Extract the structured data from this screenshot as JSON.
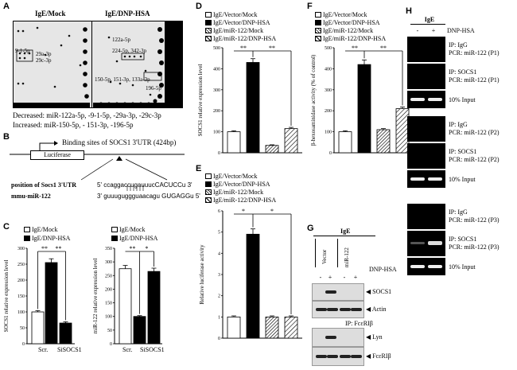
{
  "panels": {
    "A": "A",
    "B": "B",
    "C": "C",
    "D": "D",
    "E": "E",
    "F": "F",
    "G": "G",
    "H": "H"
  },
  "panelA": {
    "header_mock": "IgE/Mock",
    "header_dnp": "IgE/DNP-HSA",
    "spots_left": [
      "9-1-5p",
      "29a-3p",
      "29c-3p"
    ],
    "spots_right": [
      "122a-5p",
      "224-5p, 342-3p",
      "150-5p, 151-3p, 133a-3p",
      "196-5p"
    ],
    "decreased_label": "Decreased:",
    "decreased_text": "miR-122a-5p, -9-1-5p, -29a-3p, -29c-3p",
    "increased_label": "Increased:",
    "increased_text": "miR-150-5p, - 151-3p, -196-5p"
  },
  "panelB": {
    "binding_label": "Binding sites of SOCS1 3'UTR (424bp)",
    "luciferase": "Luciferase",
    "position_label": "position of Socs1 3'UTR",
    "position_seq": "5'  ccaggaccugauuucCACUCCu 3'",
    "mir_label": "mmu-miR-122",
    "mir_seq": "3'  guuuguggguaacagu GUGAGGu  5'"
  },
  "legend": {
    "mock": "IgE/Mock",
    "dnp": "IgE/DNP-HSA",
    "vec_mock": "IgE/Vector/Mock",
    "vec_dnp": "IgE/Vector/DNP-HSA",
    "mir_mock": "IgE/miR-122/Mock",
    "mir_dnp": "IgE/miR-122/DNP-HSA"
  },
  "sig": {
    "double": "**",
    "single": "*"
  },
  "chart_data": [
    {
      "id": "C-left",
      "type": "bar",
      "title": "",
      "xlabel": "",
      "ylabel": "SOCS1 relative expression level",
      "categories": [
        "Scr.",
        "SiSOCS1"
      ],
      "series": [
        {
          "name": "IgE/Mock",
          "values": [
            100,
            null
          ]
        },
        {
          "name": "IgE/DNP-HSA",
          "values": [
            255,
            65
          ]
        }
      ],
      "bars": [
        100,
        255,
        65
      ],
      "fills": [
        "white",
        "black",
        "black"
      ],
      "ylim": [
        0,
        300
      ],
      "yticks": [
        "0",
        "50",
        "100",
        "150",
        "200",
        "250",
        "300"
      ]
    },
    {
      "id": "C-right",
      "type": "bar",
      "title": "",
      "xlabel": "",
      "ylabel": "miR-122 relative expression level",
      "categories": [
        "Scr.",
        "SiSOCS1"
      ],
      "series": [
        {
          "name": "IgE/Mock",
          "values": [
            275,
            null
          ]
        },
        {
          "name": "IgE/DNP-HSA",
          "values": [
            100,
            265
          ]
        }
      ],
      "bars": [
        275,
        100,
        265
      ],
      "fills": [
        "white",
        "black",
        "black"
      ],
      "ylim": [
        0,
        350
      ],
      "yticks": [
        "0",
        "50",
        "100",
        "150",
        "200",
        "250",
        "300",
        "350"
      ]
    },
    {
      "id": "D",
      "type": "bar",
      "title": "",
      "xlabel": "",
      "ylabel": "SOCS1 relative expression level",
      "categories": [
        "IgE/Vector/Mock",
        "IgE/Vector/DNP-HSA",
        "IgE/miR-122/Mock",
        "IgE/miR-122/DNP-HSA"
      ],
      "bars": [
        100,
        430,
        35,
        115
      ],
      "fills": [
        "white",
        "black",
        "diag",
        "diagl"
      ],
      "ylim": [
        0,
        500
      ],
      "yticks": [
        "0",
        "100",
        "200",
        "300",
        "400",
        "500"
      ]
    },
    {
      "id": "E",
      "type": "bar",
      "title": "",
      "xlabel": "",
      "ylabel": "Relative luciferase activity",
      "categories": [
        "IgE/Vector/Mock",
        "IgE/Vector/DNP-HSA",
        "IgE/miR-122/Mock",
        "IgE/miR-122/DNP-HSA"
      ],
      "bars": [
        1,
        4.9,
        1,
        1
      ],
      "fills": [
        "white",
        "black",
        "diag",
        "diagl"
      ],
      "ylim": [
        0,
        6
      ],
      "yticks": [
        "0",
        "1",
        "2",
        "3",
        "4",
        "5",
        "6"
      ]
    },
    {
      "id": "F",
      "type": "bar",
      "title": "",
      "xlabel": "",
      "ylabel": "β-hexosaminidase activity (% of control)",
      "categories": [
        "IgE/Vector/Mock",
        "IgE/Vector/DNP-HSA",
        "IgE/miR-122/Mock",
        "IgE/miR-122/DNP-HSA"
      ],
      "bars": [
        100,
        420,
        110,
        210
      ],
      "fills": [
        "white",
        "black",
        "diag",
        "diagl"
      ],
      "ylim": [
        0,
        500
      ],
      "yticks": [
        "0",
        "100",
        "200",
        "300",
        "400",
        "500"
      ]
    }
  ],
  "xlabels": {
    "scr": "Scr.",
    "si": "SiSOCS1"
  },
  "panelG": {
    "ige": "IgE",
    "vector": "Vector",
    "mir122": "miR-122",
    "dnp": "DNP-HSA",
    "signs": [
      "-",
      "+",
      "-",
      "+"
    ],
    "socs1": "SOCS1",
    "actin": "Actin",
    "ip": "IP: FcεRIβ",
    "lyn": "Lyn",
    "fce": "FcεRIβ"
  },
  "panelH": {
    "ige": "IgE",
    "signs": [
      "-",
      "+"
    ],
    "dnp": "DNP-HSA",
    "blocks": [
      {
        "igg_ip": "IP: IgG",
        "igg_pcr": "PCR: miR-122 (P1)",
        "socs_ip": "IP: SOCS1",
        "socs_pcr": "PCR: miR-122 (P1)",
        "input": "10% Input"
      },
      {
        "igg_ip": "IP: IgG",
        "igg_pcr": "PCR: miR-122 (P2)",
        "socs_ip": "IP: SOCS1",
        "socs_pcr": "PCR: miR-122 (P2)",
        "input": "10% Input"
      },
      {
        "igg_ip": "IP: IgG",
        "igg_pcr": "PCR: miR-122 (P3)",
        "socs_ip": "IP: SOCS1",
        "socs_pcr": "PCR: miR-122 (P3)",
        "input": "10% Input"
      }
    ]
  }
}
